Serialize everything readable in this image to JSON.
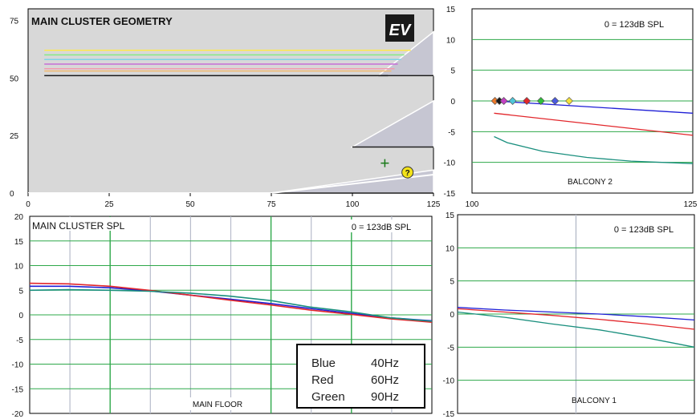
{
  "colors": {
    "blue": "#1f1fd6",
    "red": "#e2262b",
    "green": "#1a8f7e",
    "grid": "#2ea84a",
    "vgrid": "#b7bccb",
    "geometry_bg": "#d8d8d8",
    "speaker": "#c6c6d2"
  },
  "icons": {
    "logo": "ev-logo",
    "cross_marker": "plus-marker",
    "help": "question-icon"
  },
  "chart_data": [
    {
      "type": "line",
      "title": "MAIN CLUSTER GEOMETRY",
      "logo_text": "EV",
      "xlim": [
        0,
        125
      ],
      "ylim": [
        0,
        80
      ],
      "xticks": [
        0,
        25,
        50,
        75,
        100,
        125
      ],
      "yticks": [
        0,
        25,
        50,
        75
      ],
      "series": [
        {
          "color": "#ffe94a",
          "x": [
            5,
            118
          ],
          "y": [
            62,
            62
          ]
        },
        {
          "color": "#86ea86",
          "x": [
            5,
            116
          ],
          "y": [
            60,
            60
          ]
        },
        {
          "color": "#7fd3e6",
          "x": [
            5,
            115
          ],
          "y": [
            58,
            58
          ]
        },
        {
          "color": "#c56fd6",
          "x": [
            5,
            114
          ],
          "y": [
            56,
            56
          ]
        },
        {
          "color": "#f29bb0",
          "x": [
            5,
            113
          ],
          "y": [
            54,
            54
          ]
        },
        {
          "color": "#f2b96f",
          "x": [
            5,
            112
          ],
          "y": [
            53,
            53
          ]
        },
        {
          "color": "#1a1a1a",
          "x": [
            5,
            111
          ],
          "y": [
            51,
            51
          ]
        }
      ],
      "speakers": [
        {
          "x": [
            108,
            125,
            125
          ],
          "y": [
            51,
            51,
            70
          ]
        },
        {
          "x": [
            100,
            125,
            125
          ],
          "y": [
            20,
            20,
            40
          ]
        },
        {
          "x": [
            75,
            125,
            125
          ],
          "y": [
            0,
            0,
            10
          ]
        }
      ],
      "floor": {
        "x": [
          0,
          75,
          125
        ],
        "y": [
          0,
          0,
          8
        ]
      },
      "marker_plus": {
        "x": 110,
        "y": 13
      },
      "marker_help": {
        "x": 117,
        "y": 9
      }
    },
    {
      "type": "line",
      "annotation": "0 = 123dB SPL",
      "label": "BALCONY 2",
      "xlim": [
        100,
        125
      ],
      "ylim": [
        -15,
        15
      ],
      "xticks": [
        100,
        125
      ],
      "yticks": [
        15,
        10,
        5,
        0,
        -5,
        -10,
        -15
      ],
      "series": [
        {
          "name": "Blue",
          "color": "#1f1fd6",
          "x": [
            102.5,
            125
          ],
          "y": [
            0,
            -2
          ]
        },
        {
          "name": "Red",
          "color": "#e2262b",
          "x": [
            102.5,
            125
          ],
          "y": [
            -2,
            -5.6
          ]
        },
        {
          "name": "Green",
          "color": "#1a8f7e",
          "x": [
            102.5,
            104,
            108,
            113,
            118,
            125
          ],
          "y": [
            -5.8,
            -6.8,
            -8.2,
            -9.2,
            -9.8,
            -10.2
          ]
        }
      ],
      "markers": [
        {
          "x": 102.6,
          "y": 0,
          "color": "#f07a2a"
        },
        {
          "x": 103.1,
          "y": 0,
          "color": "#1a1a1a"
        },
        {
          "x": 103.6,
          "y": 0,
          "color": "#c440c4"
        },
        {
          "x": 104.6,
          "y": 0,
          "color": "#4fc7d9"
        },
        {
          "x": 106.2,
          "y": 0,
          "color": "#e2262b"
        },
        {
          "x": 107.8,
          "y": 0,
          "color": "#2fbf3a"
        },
        {
          "x": 109.4,
          "y": 0,
          "color": "#4a5ae0"
        },
        {
          "x": 111.0,
          "y": 0,
          "color": "#f5e23a"
        }
      ]
    },
    {
      "type": "line",
      "title": "MAIN CLUSTER SPL",
      "annotation": "0 = 123dB SPL",
      "label": "MAIN FLOOR",
      "xlim": [
        0,
        125
      ],
      "ylim": [
        -20,
        20
      ],
      "yticks": [
        20,
        15,
        10,
        5,
        0,
        -5,
        -10,
        -15,
        -20
      ],
      "major_x": [
        25,
        75,
        100
      ],
      "minor_x": [
        12.5,
        37.5,
        50,
        62.5,
        87.5,
        112.5
      ],
      "series": [
        {
          "name": "Blue",
          "color": "#1f1fd6",
          "x": [
            0,
            12,
            25,
            37,
            50,
            62,
            75,
            87,
            100,
            112,
            125
          ],
          "y": [
            5.8,
            5.8,
            5.5,
            4.9,
            4.0,
            3.2,
            2.3,
            1.3,
            0.3,
            -0.6,
            -1.2
          ]
        },
        {
          "name": "Red",
          "color": "#e2262b",
          "x": [
            0,
            12,
            25,
            37,
            50,
            62,
            75,
            87,
            100,
            112,
            125
          ],
          "y": [
            6.4,
            6.3,
            5.8,
            5.0,
            4.0,
            3.0,
            2.0,
            1.0,
            0.1,
            -0.8,
            -1.5
          ]
        },
        {
          "name": "Green",
          "color": "#1a8f7e",
          "x": [
            0,
            12,
            25,
            37,
            50,
            62,
            75,
            87,
            100,
            112,
            125
          ],
          "y": [
            5.0,
            5.1,
            5.0,
            4.8,
            4.4,
            3.8,
            2.9,
            1.6,
            0.6,
            -0.6,
            -1.3
          ]
        }
      ],
      "legend": [
        {
          "name": "Blue",
          "freq": "40Hz"
        },
        {
          "name": "Red",
          "freq": "60Hz"
        },
        {
          "name": "Green",
          "freq": "90Hz"
        }
      ]
    },
    {
      "type": "line",
      "annotation": "0 = 123dB SPL",
      "label": "BALCONY 1",
      "xlim": [
        0,
        100
      ],
      "ylim": [
        -15,
        15
      ],
      "yticks": [
        15,
        10,
        5,
        0,
        -5,
        -10,
        -15
      ],
      "minor_x": [
        50
      ],
      "series": [
        {
          "name": "Blue",
          "color": "#1f1fd6",
          "x": [
            0,
            20,
            40,
            60,
            80,
            100
          ],
          "y": [
            1.0,
            0.6,
            0.3,
            0.0,
            -0.4,
            -0.9
          ]
        },
        {
          "name": "Red",
          "color": "#e2262b",
          "x": [
            0,
            20,
            40,
            60,
            80,
            100
          ],
          "y": [
            0.8,
            0.3,
            -0.2,
            -0.8,
            -1.5,
            -2.3
          ]
        },
        {
          "name": "Green",
          "color": "#1a8f7e",
          "x": [
            0,
            20,
            40,
            60,
            80,
            100
          ],
          "y": [
            0.3,
            -0.5,
            -1.5,
            -2.4,
            -3.6,
            -5.0
          ]
        }
      ]
    }
  ]
}
